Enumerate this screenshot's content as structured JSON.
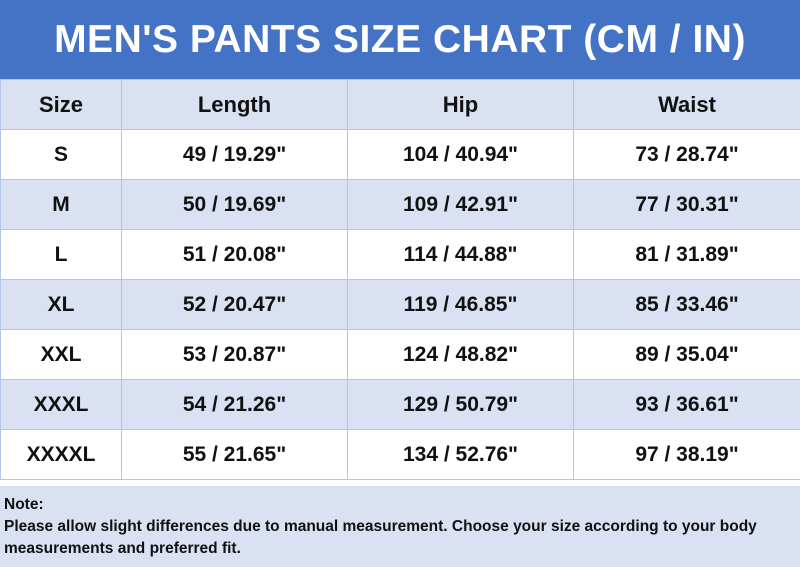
{
  "header": {
    "title": "MEN'S PANTS SIZE CHART (CM / IN)"
  },
  "table": {
    "columns": [
      "Size",
      "Length",
      "Hip",
      "Waist"
    ],
    "rows": [
      [
        "S",
        "49 / 19.29\"",
        "104 / 40.94\"",
        "73 / 28.74\""
      ],
      [
        "M",
        "50 / 19.69\"",
        "109 / 42.91\"",
        "77 / 30.31\""
      ],
      [
        "L",
        "51 / 20.08\"",
        "114 / 44.88\"",
        "81 / 31.89\""
      ],
      [
        "XL",
        "52 / 20.47\"",
        "119 / 46.85\"",
        "85 / 33.46\""
      ],
      [
        "XXL",
        "53 / 20.87\"",
        "124 / 48.82\"",
        "89 / 35.04\""
      ],
      [
        "XXXL",
        "54 / 21.26\"",
        "129 / 50.79\"",
        "93 / 36.61\""
      ],
      [
        "XXXXL",
        "55 / 21.65\"",
        "134 / 52.76\"",
        "97 / 38.19\""
      ]
    ]
  },
  "note": {
    "label": "Note:",
    "text": "Please allow slight differences due to manual measurement. Choose your size according to your body measurements and preferred fit."
  }
}
